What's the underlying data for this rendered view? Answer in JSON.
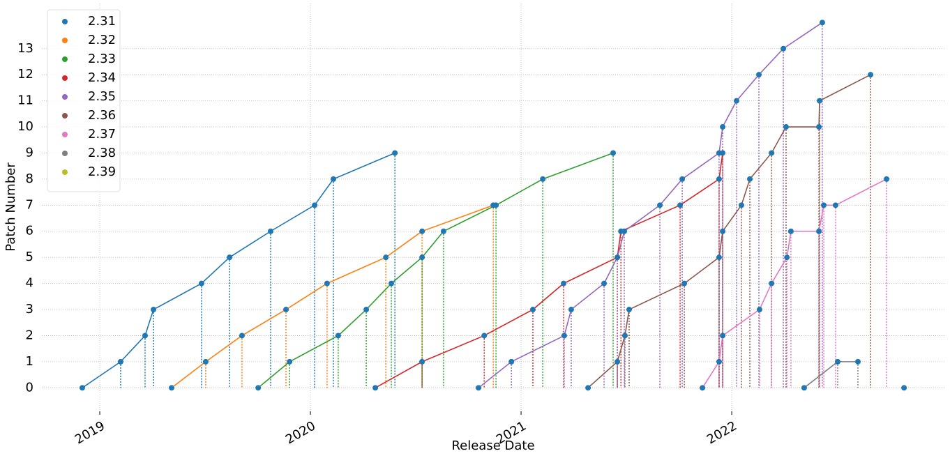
{
  "chart_data": {
    "type": "line",
    "xlabel": "Release Date",
    "ylabel": "Patch Number",
    "xlim": [
      2018.725,
      2023.013
    ],
    "xticks": [
      2019,
      2020,
      2021,
      2022
    ],
    "ylim": [
      -0.9,
      14.73
    ],
    "yticks": [
      0,
      1,
      2,
      3,
      4,
      5,
      6,
      7,
      8,
      9,
      10,
      11,
      12,
      13
    ],
    "grid": true,
    "legend": "upper left",
    "marker_color": "#1f77b4",
    "series": [
      {
        "name": "2.31",
        "color": "#1f77b4",
        "x": [
          2018.917,
          2019.099,
          2019.215,
          2019.255,
          2019.483,
          2019.616,
          2019.811,
          2020.02,
          2020.109,
          2020.401
        ],
        "values": [
          0,
          1,
          2,
          3,
          4,
          5,
          6,
          7,
          8,
          9
        ]
      },
      {
        "name": "2.32",
        "color": "#ff7f0e",
        "x": [
          2019.341,
          2019.503,
          2019.675,
          2019.884,
          2020.079,
          2020.358,
          2020.53,
          2020.868
        ],
        "values": [
          0,
          1,
          2,
          3,
          4,
          5,
          6,
          7
        ]
      },
      {
        "name": "2.33",
        "color": "#2ca02c",
        "x": [
          2019.752,
          2019.901,
          2020.132,
          2020.265,
          2020.384,
          2020.53,
          2020.632,
          2020.881,
          2021.103,
          2021.437
        ],
        "values": [
          0,
          1,
          2,
          3,
          4,
          5,
          6,
          7,
          8,
          9
        ]
      },
      {
        "name": "2.34",
        "color": "#d62728",
        "x": [
          2020.308,
          2020.53,
          2020.825,
          2021.056,
          2021.202,
          2021.457,
          2021.474,
          2021.755,
          2021.94,
          2021.957
        ],
        "values": [
          0,
          1,
          2,
          3,
          4,
          5,
          6,
          7,
          8,
          9
        ]
      },
      {
        "name": "2.35",
        "color": "#9467bd",
        "x": [
          2020.798,
          2020.954,
          2021.205,
          2021.238,
          2021.394,
          2021.457,
          2021.49,
          2021.659,
          2021.765,
          2021.94,
          2021.957,
          2022.023,
          2022.129,
          2022.245,
          2022.43
        ],
        "values": [
          0,
          1,
          2,
          3,
          4,
          5,
          6,
          7,
          8,
          9,
          10,
          11,
          12,
          13,
          14
        ]
      },
      {
        "name": "2.36",
        "color": "#8c564b",
        "x": [
          2021.318,
          2021.457,
          2021.493,
          2021.513,
          2021.775,
          2021.94,
          2021.957,
          2022.046,
          2022.086,
          2022.189,
          2022.258,
          2022.414,
          2022.417,
          2022.659
        ],
        "values": [
          0,
          1,
          2,
          3,
          4,
          5,
          6,
          7,
          8,
          9,
          10,
          10,
          11,
          12
        ]
      },
      {
        "name": "2.37",
        "color": "#e377c2",
        "x": [
          2021.861,
          2021.94,
          2021.957,
          2022.132,
          2022.189,
          2022.262,
          2022.281,
          2022.414,
          2022.437,
          2022.493,
          2022.735
        ],
        "values": [
          0,
          1,
          2,
          3,
          4,
          5,
          6,
          6,
          7,
          7,
          8
        ]
      },
      {
        "name": "2.38",
        "color": "#7f7f7f",
        "x": [
          2022.344,
          2022.503,
          2022.599
        ],
        "values": [
          0,
          1,
          1
        ]
      },
      {
        "name": "2.39",
        "color": "#bcbd22",
        "x": [
          2022.818
        ],
        "values": [
          0
        ]
      }
    ]
  }
}
